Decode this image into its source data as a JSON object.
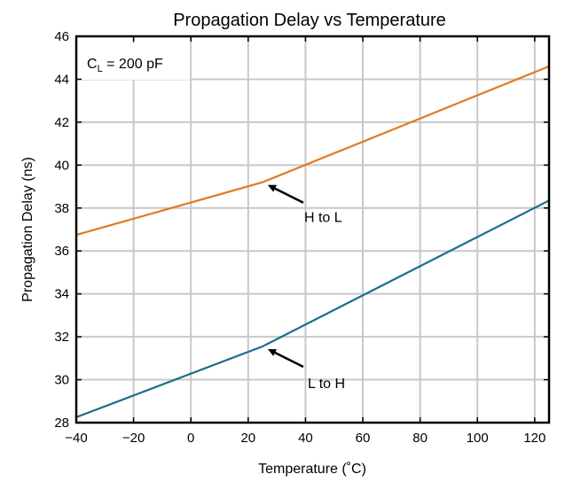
{
  "chart_data": {
    "type": "line",
    "title": "Propagation Delay vs Temperature",
    "xlabel": "Temperature (˚C)",
    "ylabel": "Propagation Delay (ns)",
    "xlim": [
      -40,
      125
    ],
    "ylim": [
      28,
      46
    ],
    "xticks": [
      -40,
      -20,
      0,
      20,
      40,
      60,
      80,
      100,
      120
    ],
    "yticks": [
      28,
      30,
      32,
      34,
      36,
      38,
      40,
      42,
      44,
      46
    ],
    "x_tick_labels": [
      "−40",
      "−20",
      "0",
      "20",
      "40",
      "60",
      "80",
      "100",
      "120"
    ],
    "y_tick_labels": [
      "28",
      "30",
      "32",
      "34",
      "36",
      "38",
      "40",
      "42",
      "44",
      "46"
    ],
    "grid": true,
    "condition_box": {
      "symbol": "C",
      "subscript": "L",
      "text": " = 200 pF"
    },
    "series": [
      {
        "name": "H to L",
        "color": "#e07b21",
        "x": [
          -40,
          25,
          125
        ],
        "y": [
          36.75,
          39.2,
          44.6
        ]
      },
      {
        "name": "L to H",
        "color": "#1a6f8a",
        "x": [
          -40,
          25,
          125
        ],
        "y": [
          28.25,
          31.55,
          38.35
        ]
      }
    ],
    "annotations": [
      {
        "text": "H to L",
        "points_to": [
          25,
          39.2
        ]
      },
      {
        "text": "L to H",
        "points_to": [
          25,
          31.55
        ]
      }
    ]
  }
}
